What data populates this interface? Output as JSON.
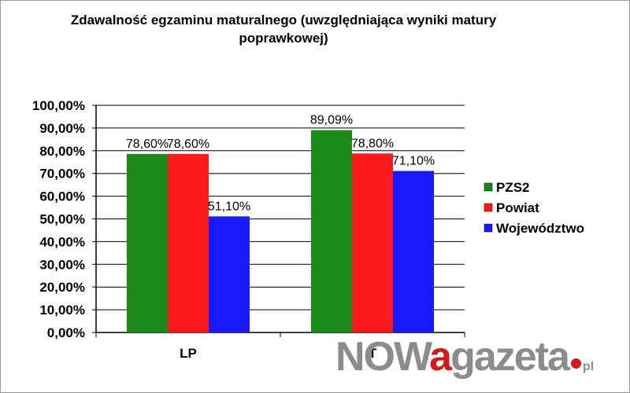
{
  "chart_data": {
    "type": "bar",
    "title": "Zdawalność egzaminu maturalnego (uwzględniająca wyniki matury poprawkowej)",
    "categories": [
      "LP",
      "T"
    ],
    "ylim": [
      0,
      100
    ],
    "yticks": [
      "0,00%",
      "10,00%",
      "20,00%",
      "30,00%",
      "40,00%",
      "50,00%",
      "60,00%",
      "70,00%",
      "80,00%",
      "90,00%",
      "100,00%"
    ],
    "grid": true,
    "legend_position": "right",
    "series": [
      {
        "name": "PZS2",
        "color": "#1a8a1a",
        "values": [
          78.6,
          89.09
        ],
        "labels": [
          "78,60%",
          "89,09%"
        ]
      },
      {
        "name": "Powiat",
        "color": "#ff1a1a",
        "values": [
          78.6,
          78.8
        ],
        "labels": [
          "78,60%",
          "78,80%"
        ]
      },
      {
        "name": "Województwo",
        "color": "#1a1aff",
        "values": [
          51.1,
          71.1
        ],
        "labels": [
          "51,10%",
          "71,10%"
        ]
      }
    ]
  },
  "watermark": {
    "part1": "NOW",
    "part2": "a",
    "part3": "gazeta",
    "part4": "pl"
  }
}
